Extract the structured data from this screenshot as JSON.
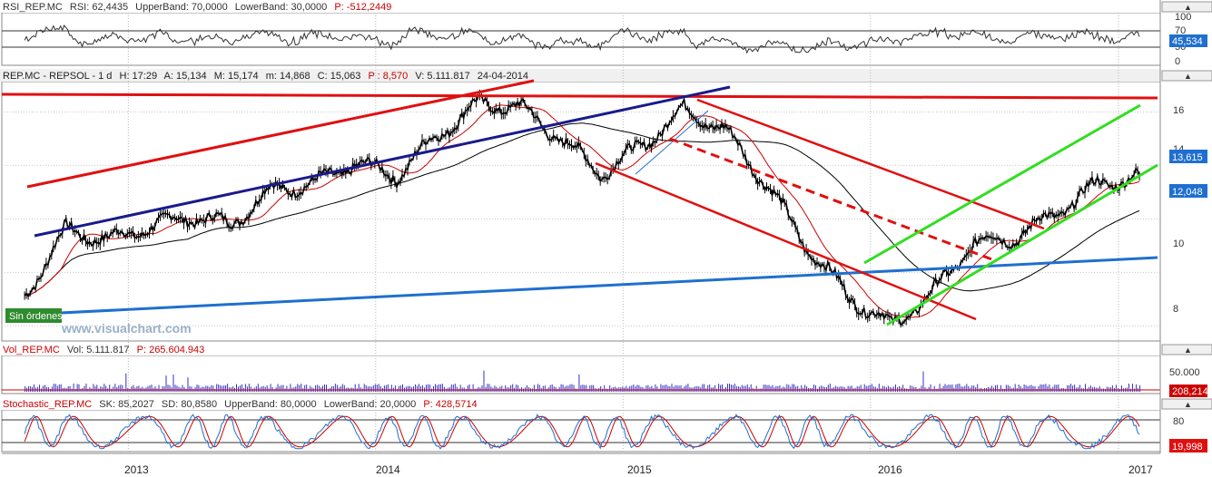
{
  "rsi_panel": {
    "header": {
      "name": "RSI_REP.MC",
      "rsi": "RSI: 62,4435",
      "upper": "UpperBand: 70,0000",
      "lower": "LowerBand: 30,0000",
      "p": "P: -512,2449"
    },
    "ticks": [
      "100",
      "70",
      "50",
      "0"
    ],
    "last_value": "45,534"
  },
  "price_panel": {
    "header": {
      "symbol": "REP.MC - REPSOL - 1 d",
      "h": "H: 17:29",
      "a": "A: 15,134",
      "m": "M: 15,174",
      "min": "m: 14,868",
      "c": "C: 15,063",
      "p": "P : 8,570",
      "v": "V: 5.111.817",
      "date": "24-04-2014"
    },
    "ticks": [
      "16",
      "14",
      "12",
      "10",
      "8"
    ],
    "last_price": "13,615",
    "ma_value": "12,048",
    "status_badge": "Sin órdenes",
    "watermark": "www.visualchart.com"
  },
  "volume_panel": {
    "header": {
      "name": "Vol_REP.MC",
      "vol": "Vol: 5.111.817",
      "p": "P: 265.604.943"
    },
    "ticks": [
      "50.000"
    ],
    "last_value": "208,214"
  },
  "stoch_panel": {
    "header": {
      "name": "Stochastic_REP.MC",
      "sk": "SK: 85,2027",
      "sd": "SD: 80,8580",
      "upper": "UpperBand: 80,0000",
      "lower": "LowerBand: 20,0000",
      "p": "P: 428,5714"
    },
    "ticks": [
      "80",
      "20"
    ],
    "last_value": "19,998"
  },
  "x_axis": {
    "labels": [
      "2013",
      "2014",
      "2015",
      "2016",
      "2017"
    ]
  },
  "colors": {
    "price_line": "#000000",
    "ma_fast": "#cc0000",
    "ma_slow": "#000000",
    "rsi_line": "#333333",
    "stoch_sk": "#1f6fd0",
    "stoch_sd": "#cc0000",
    "volume": "#3333cc",
    "resistance": "#e01010",
    "support_blue": "#1a1a8c",
    "long_blue": "#1f6fd0",
    "channel_green": "#33dd22",
    "badge_bg": "#2e8b2e",
    "last_price_bg": "#1f6fd0",
    "stoch_last_bg": "#e01010"
  },
  "chart_data": {
    "type": "line",
    "title": "REP.MC - REPSOL - 1 d",
    "x_range": [
      "2012-07",
      "2017-03"
    ],
    "ylim": [
      7.5,
      17
    ],
    "x": [
      "2012-08",
      "2012-10",
      "2012-12",
      "2013-02",
      "2013-04",
      "2013-06",
      "2013-08",
      "2013-10",
      "2013-12",
      "2014-02",
      "2014-04",
      "2014-06",
      "2014-08",
      "2014-10",
      "2014-12",
      "2015-02",
      "2015-04",
      "2015-06",
      "2015-08",
      "2015-10",
      "2015-12",
      "2016-02",
      "2016-04",
      "2016-06",
      "2016-08",
      "2016-10",
      "2016-12",
      "2017-02"
    ],
    "series": [
      {
        "values": [
          9.1,
          11.6,
          11.2,
          11.7,
          12.1,
          11.8,
          13.1,
          13.3,
          14.1,
          13.6,
          15.1,
          16.3,
          16.2,
          15.0,
          13.7,
          14.8,
          16.1,
          15.3,
          13.3,
          10.9,
          9.1,
          8.0,
          9.2,
          11.1,
          11.3,
          12.2,
          13.3,
          13.6
        ]
      }
    ]
  }
}
